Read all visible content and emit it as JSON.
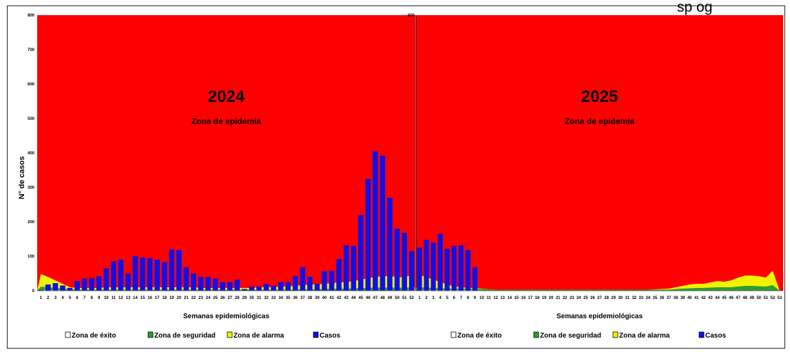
{
  "header": {
    "corner_text": "sp     og"
  },
  "y_axis_label": "N° de casos",
  "chart_data": [
    {
      "type": "bar",
      "year_label": "2024",
      "zone_label": "Zona de epidemia",
      "xlabel": "Semanas epidemiológicas",
      "ylabel": "N° de casos",
      "ylim": [
        0,
        800
      ],
      "yticks": [
        "0",
        "100",
        "200",
        "300",
        "400",
        "500",
        "600",
        "700",
        "800"
      ],
      "categories": [
        "1",
        "2",
        "3",
        "4",
        "5",
        "6",
        "7",
        "8",
        "9",
        "10",
        "11",
        "12",
        "13",
        "14",
        "15",
        "16",
        "17",
        "18",
        "19",
        "20",
        "21",
        "22",
        "23",
        "24",
        "25",
        "26",
        "27",
        "28",
        "29",
        "30",
        "31",
        "32",
        "33",
        "34",
        "35",
        "36",
        "37",
        "38",
        "39",
        "40",
        "41",
        "42",
        "43",
        "44",
        "45",
        "46",
        "47",
        "48",
        "49",
        "50",
        "51",
        "52"
      ],
      "series": [
        {
          "name": "Casos",
          "type": "bar",
          "color": "#1010e6",
          "values": [
            2,
            18,
            22,
            15,
            8,
            28,
            35,
            37,
            42,
            65,
            85,
            90,
            50,
            100,
            96,
            95,
            90,
            83,
            120,
            118,
            68,
            50,
            40,
            40,
            35,
            25,
            25,
            32,
            5,
            12,
            12,
            20,
            15,
            25,
            25,
            42,
            68,
            40,
            20,
            57,
            58,
            92,
            132,
            130,
            220,
            325,
            405,
            392,
            270,
            180,
            168,
            115
          ]
        },
        {
          "name": "Zona de alarma",
          "type": "area",
          "color": "#f2f200",
          "values": [
            48,
            40,
            30,
            20,
            10,
            8,
            8,
            8,
            8,
            10,
            10,
            10,
            10,
            10,
            10,
            10,
            10,
            10,
            10,
            10,
            10,
            10,
            8,
            8,
            8,
            8,
            8,
            8,
            8,
            8,
            10,
            10,
            10,
            12,
            12,
            14,
            16,
            18,
            18,
            20,
            22,
            24,
            25,
            28,
            32,
            36,
            40,
            42,
            42,
            40,
            38,
            46
          ]
        },
        {
          "name": "Zona de seguridad",
          "type": "area",
          "color": "#2e9e2e",
          "values": [
            12,
            10,
            8,
            6,
            4,
            3,
            3,
            3,
            3,
            3,
            3,
            3,
            3,
            3,
            3,
            3,
            3,
            3,
            3,
            3,
            3,
            3,
            3,
            3,
            3,
            3,
            3,
            3,
            3,
            3,
            3,
            3,
            3,
            3,
            3,
            3,
            4,
            4,
            4,
            5,
            5,
            6,
            6,
            7,
            8,
            8,
            9,
            9,
            9,
            9,
            9,
            10
          ]
        },
        {
          "name": "Zona de éxito",
          "type": "area",
          "color": "#ffffff",
          "values": [
            2,
            2,
            2,
            2,
            1,
            1,
            1,
            1,
            1,
            1,
            1,
            1,
            1,
            1,
            1,
            1,
            1,
            1,
            1,
            1,
            1,
            1,
            1,
            1,
            1,
            1,
            1,
            1,
            1,
            1,
            1,
            1,
            1,
            1,
            1,
            1,
            1,
            1,
            1,
            1,
            1,
            1,
            1,
            1,
            1,
            1,
            1,
            1,
            1,
            1,
            1,
            2
          ]
        }
      ]
    },
    {
      "type": "bar",
      "year_label": "2025",
      "zone_label": "Zona de epidemia",
      "xlabel": "Semanas epidemiológicas",
      "ylim": [
        0,
        800
      ],
      "categories": [
        "1",
        "2",
        "3",
        "4",
        "5",
        "6",
        "7",
        "8",
        "9",
        "10",
        "11",
        "12",
        "13",
        "14",
        "15",
        "16",
        "17",
        "18",
        "19",
        "20",
        "21",
        "22",
        "23",
        "24",
        "25",
        "26",
        "27",
        "28",
        "29",
        "30",
        "31",
        "32",
        "33",
        "34",
        "35",
        "36",
        "37",
        "38",
        "39",
        "40",
        "41",
        "42",
        "43",
        "44",
        "45",
        "46",
        "47",
        "48",
        "49",
        "50",
        "51",
        "52",
        "53"
      ],
      "series": [
        {
          "name": "Casos",
          "type": "bar",
          "color": "#1010e6",
          "values": [
            125,
            148,
            140,
            165,
            122,
            130,
            132,
            118,
            68,
            0,
            0,
            0,
            0,
            0,
            0,
            0,
            0,
            0,
            0,
            0,
            0,
            0,
            0,
            0,
            0,
            0,
            0,
            0,
            0,
            0,
            0,
            0,
            0,
            0,
            0,
            0,
            0,
            0,
            0,
            0,
            0,
            0,
            0,
            0,
            0,
            0,
            0,
            0,
            0,
            0,
            0,
            0,
            0
          ]
        },
        {
          "name": "Zona de alarma",
          "type": "area",
          "color": "#f2f200",
          "values": [
            45,
            40,
            32,
            25,
            18,
            12,
            10,
            8,
            8,
            6,
            4,
            3,
            3,
            3,
            3,
            3,
            3,
            3,
            3,
            3,
            3,
            3,
            3,
            3,
            3,
            3,
            3,
            3,
            3,
            3,
            3,
            3,
            3,
            3,
            4,
            5,
            6,
            10,
            14,
            18,
            20,
            20,
            24,
            28,
            26,
            30,
            38,
            44,
            44,
            42,
            38,
            58,
            0
          ]
        },
        {
          "name": "Zona de seguridad",
          "type": "area",
          "color": "#2e9e2e",
          "values": [
            10,
            9,
            8,
            7,
            6,
            6,
            6,
            6,
            6,
            5,
            4,
            3,
            3,
            3,
            3,
            3,
            3,
            3,
            3,
            3,
            3,
            3,
            3,
            3,
            3,
            3,
            3,
            3,
            3,
            3,
            3,
            3,
            3,
            3,
            3,
            3,
            3,
            5,
            6,
            7,
            8,
            8,
            9,
            10,
            10,
            10,
            12,
            14,
            14,
            13,
            12,
            16,
            0
          ]
        },
        {
          "name": "Zona de éxito",
          "type": "area",
          "color": "#ffffff",
          "values": [
            2,
            2,
            2,
            2,
            2,
            2,
            2,
            2,
            2,
            1,
            1,
            1,
            1,
            1,
            1,
            1,
            1,
            1,
            1,
            1,
            1,
            1,
            1,
            1,
            1,
            1,
            1,
            1,
            1,
            1,
            1,
            1,
            1,
            1,
            1,
            1,
            1,
            1,
            1,
            1,
            1,
            1,
            1,
            1,
            1,
            1,
            1,
            1,
            1,
            1,
            1,
            1,
            0
          ]
        }
      ]
    }
  ],
  "legend": [
    {
      "label": "Zona de éxito",
      "color": "#ffffff"
    },
    {
      "label": "Zona de seguridad",
      "color": "#2e9e2e"
    },
    {
      "label": "Zona de alarma",
      "color": "#f2f200"
    },
    {
      "label": "Casos",
      "color": "#1010e6"
    }
  ],
  "colors": {
    "epidemia": "#ff0000"
  }
}
